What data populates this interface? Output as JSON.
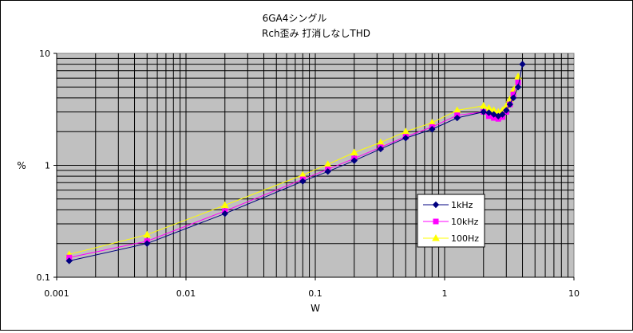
{
  "chart_data": {
    "type": "line",
    "title": "6GA4シングル",
    "subtitle": "Rch歪み 打消しなしTHD",
    "xlabel": "W",
    "ylabel": "%",
    "xscale": "log",
    "yscale": "log",
    "xlim": [
      0.001,
      10
    ],
    "ylim": [
      0.1,
      10
    ],
    "x_ticks": [
      "0.001",
      "0.01",
      "0.1",
      "1",
      "10"
    ],
    "y_ticks": [
      "0.1",
      "1",
      "10"
    ],
    "grid": true,
    "plot_background": "#c0c0c0",
    "legend_position": "right",
    "series": [
      {
        "name": "1kHz",
        "color": "#000080",
        "marker": "diamond",
        "points": [
          [
            0.00125,
            0.14
          ],
          [
            0.005,
            0.2
          ],
          [
            0.02,
            0.37
          ],
          [
            0.08,
            0.72
          ],
          [
            0.125,
            0.88
          ],
          [
            0.2,
            1.1
          ],
          [
            0.32,
            1.4
          ],
          [
            0.5,
            1.75
          ],
          [
            0.8,
            2.1
          ],
          [
            1.25,
            2.65
          ],
          [
            2.0,
            3.0
          ],
          [
            2.2,
            2.95
          ],
          [
            2.4,
            2.85
          ],
          [
            2.6,
            2.75
          ],
          [
            2.8,
            2.85
          ],
          [
            3.0,
            3.1
          ],
          [
            3.2,
            3.5
          ],
          [
            3.4,
            4.0
          ],
          [
            3.7,
            5.0
          ],
          [
            4.0,
            8.0
          ]
        ]
      },
      {
        "name": "10kHz",
        "color": "#ff00ff",
        "marker": "square",
        "points": [
          [
            0.00125,
            0.15
          ],
          [
            0.005,
            0.21
          ],
          [
            0.02,
            0.39
          ],
          [
            0.08,
            0.75
          ],
          [
            0.125,
            0.92
          ],
          [
            0.2,
            1.15
          ],
          [
            0.32,
            1.45
          ],
          [
            0.5,
            1.8
          ],
          [
            0.8,
            2.2
          ],
          [
            1.25,
            2.8
          ],
          [
            2.0,
            3.0
          ],
          [
            2.2,
            2.75
          ],
          [
            2.4,
            2.65
          ],
          [
            2.6,
            2.6
          ],
          [
            2.8,
            2.7
          ],
          [
            3.0,
            3.0
          ],
          [
            3.2,
            3.5
          ],
          [
            3.4,
            4.3
          ],
          [
            3.7,
            5.5
          ]
        ]
      },
      {
        "name": "100Hz",
        "color": "#ffff00",
        "marker": "triangle",
        "points": [
          [
            0.00125,
            0.16
          ],
          [
            0.005,
            0.24
          ],
          [
            0.02,
            0.44
          ],
          [
            0.08,
            0.82
          ],
          [
            0.125,
            1.02
          ],
          [
            0.2,
            1.3
          ],
          [
            0.32,
            1.6
          ],
          [
            0.5,
            2.0
          ],
          [
            0.8,
            2.4
          ],
          [
            1.25,
            3.1
          ],
          [
            2.0,
            3.4
          ],
          [
            2.2,
            3.25
          ],
          [
            2.4,
            3.1
          ],
          [
            2.6,
            3.0
          ],
          [
            2.8,
            3.1
          ],
          [
            3.0,
            3.4
          ],
          [
            3.2,
            3.9
          ],
          [
            3.4,
            4.7
          ],
          [
            3.7,
            6.2
          ]
        ]
      }
    ]
  }
}
